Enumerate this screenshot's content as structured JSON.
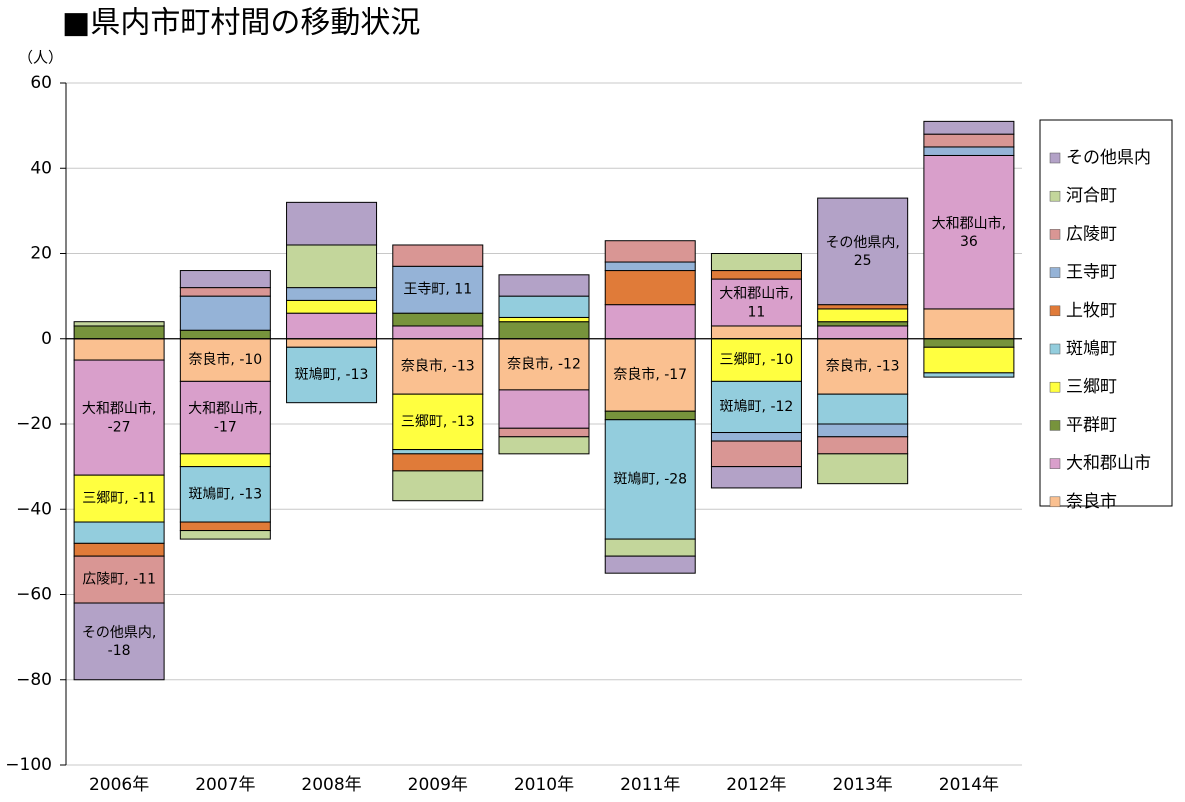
{
  "chart_data": {
    "type": "diverging-stacked-bar",
    "title": "■県内市町村間の移動状況",
    "y_unit": "（人）",
    "categories": [
      "2006年",
      "2007年",
      "2008年",
      "2009年",
      "2010年",
      "2011年",
      "2012年",
      "2013年",
      "2014年"
    ],
    "ylim": [
      -100,
      60
    ],
    "yticks": [
      {
        "value": -100,
        "label": "−100"
      },
      {
        "value": -80,
        "label": "−80"
      },
      {
        "value": -60,
        "label": "−60"
      },
      {
        "value": -40,
        "label": "−40"
      },
      {
        "value": -20,
        "label": "−20"
      },
      0,
      20,
      40,
      60
    ],
    "grid": true,
    "legend": "right",
    "series": [
      {
        "name": "奈良市",
        "color": "#fac090",
        "values": [
          -5,
          -10,
          -2,
          -13,
          -12,
          -17,
          3,
          -13,
          7
        ],
        "value_labels": [
          null,
          "奈良市, -10",
          null,
          "奈良市, -13",
          "奈良市, -12",
          "奈良市, -17",
          null,
          "奈良市, -13",
          null
        ]
      },
      {
        "name": "大和郡山市",
        "color": "#d99fcb",
        "values": [
          -27,
          -17,
          6,
          3,
          -9,
          8,
          11,
          3,
          36
        ],
        "value_labels": [
          "大和郡山市, -27",
          "大和郡山市, -17",
          null,
          null,
          null,
          null,
          "大和郡山市, 11",
          null,
          "大和郡山市, 36"
        ]
      },
      {
        "name": "平群町",
        "color": "#77933c",
        "values": [
          3,
          2,
          0,
          3,
          4,
          -2,
          0,
          1,
          -2
        ],
        "value_labels": [
          null,
          null,
          null,
          null,
          null,
          null,
          null,
          null,
          null
        ]
      },
      {
        "name": "三郷町",
        "color": "#ffff40",
        "values": [
          -11,
          -3,
          3,
          -13,
          1,
          0,
          -10,
          3,
          -6
        ],
        "value_labels": [
          "三郷町, -11",
          null,
          null,
          "三郷町, -13",
          null,
          null,
          "三郷町, -10",
          null,
          null
        ]
      },
      {
        "name": "斑鳩町",
        "color": "#93cddd",
        "values": [
          -5,
          -13,
          -13,
          -1,
          5,
          -28,
          -12,
          -7,
          -1
        ],
        "value_labels": [
          null,
          "斑鳩町, -13",
          "斑鳩町, -13",
          null,
          null,
          "斑鳩町, -28",
          "斑鳩町, -12",
          null,
          null
        ]
      },
      {
        "name": "上牧町",
        "color": "#e07b39",
        "values": [
          -3,
          -2,
          0,
          -4,
          0,
          8,
          2,
          1,
          0
        ],
        "value_labels": [
          null,
          null,
          null,
          null,
          null,
          null,
          null,
          null,
          null
        ]
      },
      {
        "name": "王寺町",
        "color": "#95b3d7",
        "values": [
          0,
          8,
          3,
          11,
          0,
          2,
          -2,
          -3,
          2
        ],
        "value_labels": [
          null,
          null,
          null,
          "王寺町, 11",
          null,
          null,
          null,
          null,
          null
        ]
      },
      {
        "name": "広陵町",
        "color": "#d99694",
        "values": [
          -11,
          2,
          0,
          5,
          -2,
          5,
          -6,
          -4,
          3
        ],
        "value_labels": [
          "広陵町, -11",
          null,
          null,
          null,
          null,
          null,
          null,
          null,
          null
        ]
      },
      {
        "name": "河合町",
        "color": "#c3d69b",
        "values": [
          1,
          -2,
          10,
          -7,
          -4,
          -4,
          4,
          -7,
          0
        ],
        "value_labels": [
          null,
          null,
          null,
          null,
          null,
          null,
          null,
          null,
          null
        ]
      },
      {
        "name": "その他県内",
        "color": "#b3a2c7",
        "values": [
          -18,
          4,
          10,
          0,
          5,
          -4,
          -5,
          25,
          3
        ],
        "value_labels": [
          "その他県内, -18",
          null,
          null,
          null,
          null,
          null,
          null,
          "その他県内, 25",
          null
        ]
      }
    ]
  }
}
